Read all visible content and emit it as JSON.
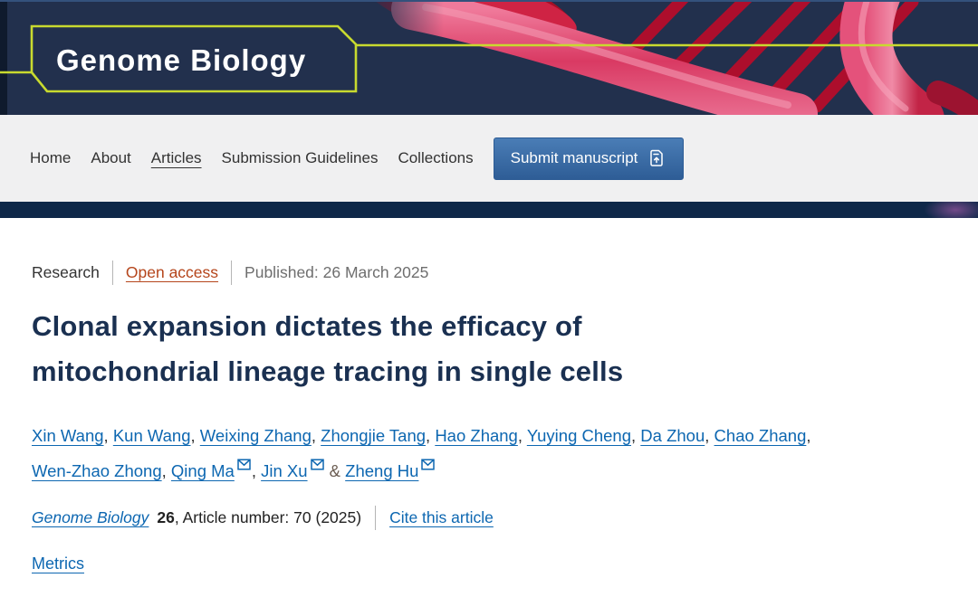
{
  "brand": {
    "journal": "Genome Biology",
    "header_navy": "#22304d",
    "strip_navy": "#0f2849",
    "keyline_green": "#c8da2f",
    "dna_red": "#b50d2b",
    "dna_pink": "#e85a85"
  },
  "nav": {
    "items": [
      {
        "label": "Home"
      },
      {
        "label": "About"
      },
      {
        "label": "Articles",
        "current": true
      },
      {
        "label": "Submission Guidelines"
      },
      {
        "label": "Collections"
      }
    ],
    "submit": {
      "label": "Submit manuscript",
      "color": "#3a6ca8"
    }
  },
  "article": {
    "meta": {
      "type": "Research",
      "access": "Open access",
      "published": "Published: 26 March 2025",
      "access_color": "#b5451b"
    },
    "title_lines": [
      "Clonal expansion dictates the efficacy of",
      "mitochondrial lineage tracing in single cells"
    ],
    "title_color": "#1a3051",
    "authors": [
      {
        "name": "Xin Wang",
        "email": false,
        "sep": ", "
      },
      {
        "name": "Kun Wang",
        "email": false,
        "sep": ", "
      },
      {
        "name": "Weixing Zhang",
        "email": false,
        "sep": ", "
      },
      {
        "name": "Zhongjie Tang",
        "email": false,
        "sep": ", "
      },
      {
        "name": "Hao Zhang",
        "email": false,
        "sep": ", "
      },
      {
        "name": "Yuying Cheng",
        "email": false,
        "sep": ", "
      },
      {
        "name": "Da Zhou",
        "email": false,
        "sep": ", "
      },
      {
        "name": "Chao Zhang",
        "email": false,
        "sep": ",",
        "break_after": true
      },
      {
        "name": "Wen-Zhao Zhong",
        "email": false,
        "sep": ", "
      },
      {
        "name": "Qing Ma",
        "email": true,
        "sep": ", "
      },
      {
        "name": "Jin Xu",
        "email": true,
        "sep": " & "
      },
      {
        "name": "Zheng Hu",
        "email": true,
        "sep": ""
      }
    ],
    "link_blue": "#0d67b1",
    "citation": {
      "journal": "Genome Biology",
      "volume": "26",
      "detail": ", Article number: 70 (2025)",
      "cite_link": "Cite this article"
    },
    "metrics_label": "Metrics"
  }
}
